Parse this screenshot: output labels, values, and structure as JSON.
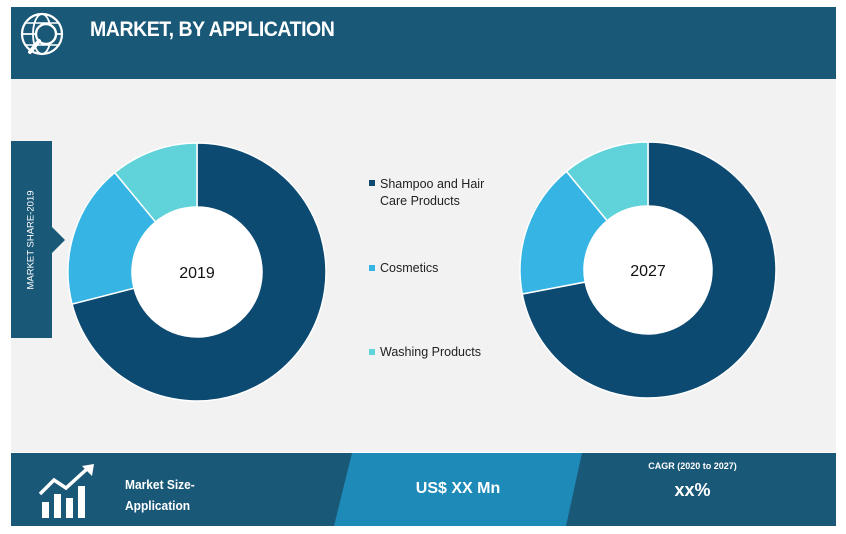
{
  "header": {
    "title": "MARKET, BY APPLICATION",
    "icon": "globe-search-icon"
  },
  "side_label": "MARKET SHARE-2019",
  "chart_data": [
    {
      "type": "pie",
      "center_label": "2019",
      "categories": [
        "Shampoo and Hair Care Products",
        "Cosmetics",
        "Washing Products"
      ],
      "values": [
        71,
        18,
        11
      ]
    },
    {
      "type": "pie",
      "center_label": "2027",
      "categories": [
        "Shampoo and Hair Care Products",
        "Cosmetics",
        "Washing Products"
      ],
      "values": [
        72,
        17,
        11
      ]
    }
  ],
  "legend": [
    {
      "label": "Shampoo and Hair Care Products",
      "color": "#0d4a72"
    },
    {
      "label": "Cosmetics",
      "color": "#36b4e4"
    },
    {
      "label": "Washing Products",
      "color": "#5fd3d9"
    }
  ],
  "colors": {
    "header_bg": "#1a5878",
    "panel_bg": "#f2f2f2",
    "footer_mid": "#1e8ab8"
  },
  "footer": {
    "label_line1": "Market Size-",
    "label_line2": "Application",
    "value": "US$ XX Mn",
    "cagr_label": "CAGR (2020 to 2027)",
    "cagr_value": "xx%",
    "icon": "growth-chart-icon"
  }
}
